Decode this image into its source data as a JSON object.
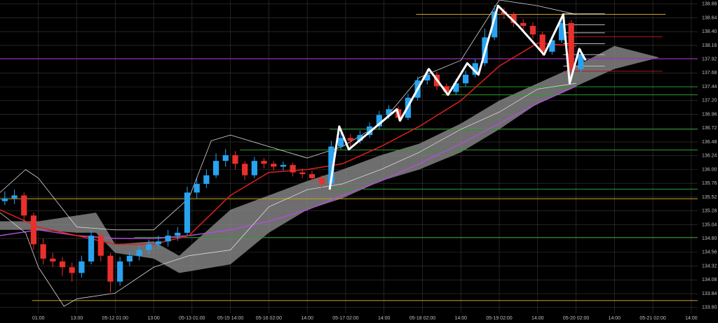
{
  "chart_data": {
    "type": "candlestick",
    "up_color": "#29a3f0",
    "down_color": "#e8302c",
    "grid": true,
    "grid_color": "#3a3a3a",
    "xlim": [
      0,
      218
    ],
    "ylim": [
      133.5,
      138.95
    ],
    "xticks": [
      {
        "value": 12,
        "label": "01:00"
      },
      {
        "value": 24,
        "label": "13:00"
      },
      {
        "value": 36,
        "label": "05-12 01:00"
      },
      {
        "value": 48,
        "label": "13:00"
      },
      {
        "value": 60,
        "label": "05-13 01:00"
      },
      {
        "value": 72,
        "label": "05-15 14:00"
      },
      {
        "value": 84,
        "label": "05-16 02:00"
      },
      {
        "value": 96,
        "label": "14:00"
      },
      {
        "value": 108,
        "label": "05-17 02:00"
      },
      {
        "value": 120,
        "label": "14:00"
      },
      {
        "value": 132,
        "label": "05-18 02:00"
      },
      {
        "value": 144,
        "label": "14:00"
      },
      {
        "value": 156,
        "label": "05-19 02:00"
      },
      {
        "value": 168,
        "label": "14:00"
      },
      {
        "value": 180,
        "label": "05-20 02:00"
      },
      {
        "value": 192,
        "label": "14:00"
      },
      {
        "value": 204,
        "label": "05-21 02:00"
      },
      {
        "value": 216,
        "label": "14:00"
      }
    ],
    "yticks": [
      {
        "value": 133.6,
        "label": "133.60"
      },
      {
        "value": 133.84,
        "label": "133.84"
      },
      {
        "value": 134.08,
        "label": "134.08"
      },
      {
        "value": 134.32,
        "label": "134.32"
      },
      {
        "value": 134.56,
        "label": "134.56"
      },
      {
        "value": 134.8,
        "label": "134.80"
      },
      {
        "value": 135.04,
        "label": "135.04"
      },
      {
        "value": 135.28,
        "label": "135.28"
      },
      {
        "value": 135.52,
        "label": "135.52"
      },
      {
        "value": 135.76,
        "label": "135.76"
      },
      {
        "value": 136,
        "label": "136.00"
      },
      {
        "value": 136.24,
        "label": "136.24"
      },
      {
        "value": 136.48,
        "label": "136.48"
      },
      {
        "value": 136.72,
        "label": "136.72"
      },
      {
        "value": 136.96,
        "label": "136.96"
      },
      {
        "value": 137.2,
        "label": "137.20"
      },
      {
        "value": 137.44,
        "label": "137.44"
      },
      {
        "value": 137.68,
        "label": "137.68"
      },
      {
        "value": 137.92,
        "label": "137.92"
      },
      {
        "value": 138.16,
        "label": "138.16"
      },
      {
        "value": 138.4,
        "label": "138.40"
      },
      {
        "value": 138.64,
        "label": "138.64"
      },
      {
        "value": 138.88,
        "label": "138.88"
      }
    ],
    "x": [
      1.5,
      4.5,
      7.5,
      10.5,
      13.5,
      16.5,
      19.5,
      22.5,
      25.5,
      28.5,
      31.5,
      34.5,
      37.5,
      40.5,
      43.5,
      46.5,
      49.5,
      52.5,
      55.5,
      58.5,
      61.5,
      64.5,
      67.5,
      70.5,
      73.5,
      76.5,
      79.5,
      82.5,
      85.5,
      88.5,
      91.5,
      94.5,
      97.5,
      100.5,
      103.5,
      106.5,
      109.5,
      112.5,
      115.5,
      118.5,
      121.5,
      124.5,
      127.5,
      130.5,
      133.5,
      136.5,
      139.5,
      142.5,
      145.5,
      148.5,
      151.5,
      154.5,
      157.5,
      160.5,
      163.5,
      166.5,
      169.5,
      172.5,
      175.5,
      178.5,
      181.5
    ],
    "open": [
      135.45,
      135.5,
      135.55,
      135.2,
      134.7,
      134.45,
      134.4,
      134.3,
      134.2,
      134.4,
      134.85,
      134.5,
      134.05,
      134.4,
      134.5,
      134.6,
      134.7,
      134.75,
      134.85,
      134.9,
      135.6,
      135.75,
      135.9,
      136.15,
      136.25,
      136.1,
      135.9,
      136.15,
      136.1,
      136.05,
      136.08,
      135.95,
      135.92,
      135.85,
      135.75,
      136.4,
      136.55,
      136.5,
      136.6,
      136.75,
      136.95,
      137.05,
      136.9,
      137.25,
      137.55,
      137.65,
      137.45,
      137.35,
      137.5,
      137.65,
      137.85,
      138.3,
      138.75,
      138.7,
      138.55,
      138.5,
      138.35,
      138.05,
      138.25,
      138.55,
      137.75
    ],
    "high": [
      135.62,
      135.65,
      135.6,
      135.25,
      134.8,
      134.55,
      134.48,
      134.38,
      134.5,
      134.95,
      134.9,
      134.55,
      134.48,
      134.58,
      134.68,
      134.78,
      134.85,
      134.95,
      135,
      135.7,
      135.85,
      136,
      136.28,
      136.36,
      136.32,
      136.15,
      136.22,
      136.2,
      136.15,
      136.14,
      136.12,
      136.02,
      135.98,
      135.9,
      136.5,
      136.72,
      136.62,
      136.68,
      136.82,
      137.02,
      137.12,
      137.1,
      137.32,
      137.62,
      137.75,
      137.7,
      137.5,
      137.58,
      137.72,
      137.92,
      138.45,
      138.86,
      138.82,
      138.74,
      138.62,
      138.56,
      138.4,
      138.32,
      138.66,
      138.6,
      138.1
    ],
    "low": [
      135.38,
      135.4,
      135.1,
      134.6,
      134.35,
      134.3,
      134.15,
      134.05,
      134.12,
      134.35,
      134.4,
      133.86,
      133.98,
      134.32,
      134.42,
      134.52,
      134.62,
      134.66,
      134.76,
      134.85,
      135.5,
      135.68,
      135.85,
      136.05,
      136,
      135.82,
      135.85,
      136.02,
      135.98,
      135.98,
      135.88,
      135.85,
      135.78,
      135.68,
      135.7,
      136.35,
      136.4,
      136.45,
      136.55,
      136.7,
      136.88,
      136.85,
      136.86,
      137.2,
      137.48,
      137.38,
      137.28,
      137.3,
      137.44,
      137.6,
      137.8,
      138.25,
      138.62,
      138.48,
      138.42,
      138.28,
      137.98,
      138,
      138.2,
      137.6,
      137.7
    ],
    "close": [
      135.5,
      135.55,
      135.2,
      134.7,
      134.45,
      134.4,
      134.3,
      134.2,
      134.4,
      134.85,
      134.5,
      134.05,
      134.4,
      134.5,
      134.6,
      134.7,
      134.75,
      134.85,
      134.9,
      135.6,
      135.75,
      135.9,
      136.15,
      136.25,
      136.1,
      135.9,
      136.15,
      136.1,
      136.05,
      136.08,
      135.95,
      135.92,
      135.85,
      135.75,
      136.4,
      136.55,
      136.5,
      136.6,
      136.75,
      136.95,
      137.05,
      136.9,
      137.25,
      137.55,
      137.65,
      137.45,
      137.35,
      137.5,
      137.65,
      137.85,
      138.3,
      138.75,
      138.7,
      138.55,
      138.5,
      138.35,
      138.05,
      138.25,
      138.55,
      137.75,
      138
    ],
    "cloud": {
      "color": "#8a8a8a",
      "x": [
        0,
        12,
        24,
        30,
        36,
        48,
        56,
        72,
        84,
        96,
        107,
        119,
        131,
        144,
        156,
        168,
        180,
        192,
        206
      ],
      "upper": [
        135.1,
        135.1,
        135.2,
        135.25,
        134.7,
        134.75,
        134.5,
        135.3,
        135.55,
        135.8,
        136,
        136.25,
        136.45,
        136.8,
        137.2,
        137.5,
        137.8,
        138.15,
        137.95
      ],
      "lower": [
        134.95,
        134.95,
        134.9,
        134.9,
        134.55,
        134.45,
        134.2,
        134.35,
        134.9,
        135.3,
        135.5,
        135.8,
        136,
        136.3,
        136.7,
        137.15,
        137.45,
        137.75,
        137.95
      ]
    },
    "lines": [
      {
        "color": "#b04fd6",
        "width": 1.5,
        "x": [
          0,
          12,
          24,
          36,
          48,
          59,
          72,
          84,
          96,
          107,
          119,
          131,
          144,
          156,
          168,
          180
        ],
        "values": [
          134.85,
          134.95,
          134.85,
          134.8,
          134.8,
          134.85,
          134.95,
          135.1,
          135.3,
          135.55,
          135.8,
          136.1,
          136.45,
          136.8,
          137.15,
          137.45
        ]
      },
      {
        "color": "#e0201c",
        "width": 1.5,
        "x": [
          0,
          12,
          24,
          36,
          48,
          59,
          72,
          84,
          96,
          107,
          119,
          131,
          144,
          156,
          168,
          180
        ],
        "values": [
          135.3,
          135,
          134.85,
          134.7,
          134.7,
          134.85,
          135.55,
          135.95,
          136,
          136.1,
          136.4,
          136.75,
          137.2,
          137.8,
          138.2,
          138.15
        ]
      },
      {
        "color": "#d8d8d8",
        "width": 0.8,
        "x": [
          0,
          8,
          12,
          24,
          36,
          48,
          59,
          66,
          72,
          84,
          96,
          107,
          119,
          131,
          144,
          156,
          168,
          180
        ],
        "values": [
          135.6,
          136,
          135.85,
          135,
          134.95,
          134.95,
          135.5,
          136.5,
          136.6,
          136.4,
          136.2,
          136.4,
          136.8,
          137.6,
          137.9,
          138.95,
          138.85,
          138.7
        ]
      },
      {
        "color": "#d8d8d8",
        "width": 0.8,
        "x": [
          0,
          8,
          12,
          20,
          24,
          36,
          48,
          59,
          72,
          84,
          96,
          107,
          119,
          131,
          144,
          156,
          168,
          180
        ],
        "values": [
          135.25,
          134.9,
          134.3,
          133.62,
          133.75,
          133.85,
          134.3,
          134.5,
          134.6,
          135.35,
          135.65,
          135.75,
          136,
          136.3,
          136.7,
          137,
          137.4,
          137.5
        ]
      }
    ],
    "zigzag": {
      "color": "#ffffff",
      "x": [
        103,
        106,
        109,
        124,
        125,
        134,
        140,
        146,
        149.5,
        155.6,
        162,
        170,
        176,
        178,
        181,
        183
      ],
      "values": [
        135.65,
        136.75,
        136.35,
        137.05,
        136.85,
        137.75,
        137.3,
        137.85,
        137.65,
        138.85,
        138.5,
        138,
        138.7,
        137.5,
        138.1,
        137.9
      ]
    },
    "levels": [
      {
        "value": 138.7,
        "color": "#c9a227",
        "x": [
          130,
          208
        ]
      },
      {
        "value": 135.49,
        "color": "#c9a227",
        "x": [
          0,
          218
        ]
      },
      {
        "value": 133.72,
        "color": "#c9a227",
        "x": [
          10,
          218
        ]
      },
      {
        "value": 137.93,
        "color": "#a020d0",
        "x": [
          0,
          218
        ]
      },
      {
        "value": 138.31,
        "color": "#b01818",
        "x": [
          176,
          207
        ]
      },
      {
        "value": 137.71,
        "color": "#b01818",
        "x": [
          176,
          207
        ]
      },
      {
        "value": 137.44,
        "color": "#2e9a2e",
        "x": [
          138,
          218
        ]
      },
      {
        "value": 137.3,
        "color": "#2e9a2e",
        "x": [
          138,
          218
        ]
      },
      {
        "value": 136.7,
        "color": "#2e9a2e",
        "x": [
          103,
          218
        ]
      },
      {
        "value": 136.34,
        "color": "#2e9a2e",
        "x": [
          75,
          218
        ]
      },
      {
        "value": 135.66,
        "color": "#2e9a2e",
        "x": [
          103,
          218
        ]
      },
      {
        "value": 134.82,
        "color": "#2e9a2e",
        "x": [
          42,
          218
        ]
      },
      {
        "value": 138.71,
        "color": "#bdbdbd",
        "x": [
          176,
          189
        ]
      },
      {
        "value": 138.52,
        "color": "#bdbdbd",
        "x": [
          176,
          189
        ]
      },
      {
        "value": 138.38,
        "color": "#bdbdbd",
        "x": [
          176,
          189
        ]
      },
      {
        "value": 138.19,
        "color": "#bdbdbd",
        "x": [
          176,
          189
        ]
      },
      {
        "value": 138,
        "color": "#bdbdbd",
        "x": [
          176,
          189
        ]
      },
      {
        "value": 137.8,
        "color": "#bdbdbd",
        "x": [
          176,
          189
        ]
      }
    ]
  }
}
